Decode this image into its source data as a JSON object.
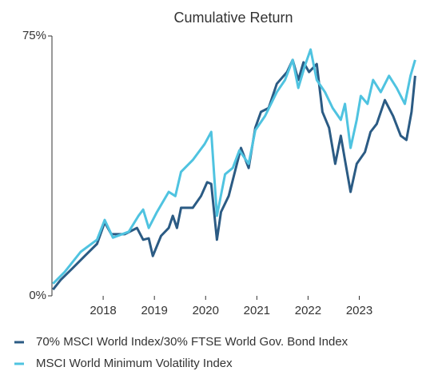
{
  "chart_data": {
    "type": "line",
    "title": "Cumulative Return",
    "xlim": [
      2017.0,
      2024.1
    ],
    "xticks": [
      2018,
      2019,
      2020,
      2021,
      2022,
      2023
    ],
    "ylim": [
      0,
      75
    ],
    "yticks": [
      {
        "value": 0,
        "label": "0%"
      },
      {
        "value": 75,
        "label": "75%"
      }
    ],
    "series": [
      {
        "name": "70% MSCI World Index/30% FTSE World Gov. Bond Index",
        "color": "#2b5b84",
        "x": [
          2017.02,
          2017.17,
          2017.41,
          2017.64,
          2017.88,
          2018.03,
          2018.16,
          2018.42,
          2018.66,
          2018.78,
          2018.89,
          2018.97,
          2019.13,
          2019.28,
          2019.36,
          2019.44,
          2019.52,
          2019.75,
          2019.91,
          2020.03,
          2020.11,
          2020.22,
          2020.3,
          2020.45,
          2020.69,
          2020.84,
          2020.97,
          2021.08,
          2021.23,
          2021.39,
          2021.59,
          2021.7,
          2021.81,
          2021.91,
          2022.02,
          2022.17,
          2022.28,
          2022.41,
          2022.53,
          2022.64,
          2022.72,
          2022.83,
          2022.95,
          2023.11,
          2023.22,
          2023.34,
          2023.5,
          2023.66,
          2023.81,
          2023.92,
          2024.02,
          2024.09
        ],
        "values": [
          1.8,
          4.6,
          8.1,
          11.5,
          15,
          21.2,
          17.8,
          17.8,
          19.6,
          16.2,
          16.6,
          11.5,
          17.3,
          19.6,
          23.1,
          19.6,
          25.4,
          25.4,
          28.8,
          32.8,
          32.3,
          16.2,
          24.2,
          28.8,
          42.7,
          36.9,
          48.5,
          53.1,
          54.2,
          61.2,
          64.6,
          68.1,
          62.3,
          67.4,
          64.6,
          66.9,
          53.1,
          48.5,
          38.1,
          46.2,
          39.2,
          30,
          38.1,
          41.5,
          47.3,
          49.6,
          56.5,
          51.9,
          46.2,
          45,
          53.1,
          63.5
        ]
      },
      {
        "name": "MSCI World Minimum Volatility Index",
        "color": "#4fc3e0",
        "x": [
          2017.02,
          2017.25,
          2017.56,
          2017.88,
          2018.03,
          2018.19,
          2018.5,
          2018.69,
          2018.78,
          2018.89,
          2019.05,
          2019.28,
          2019.41,
          2019.52,
          2019.75,
          2019.98,
          2020.11,
          2020.22,
          2020.38,
          2020.53,
          2020.66,
          2020.84,
          2020.97,
          2021.16,
          2021.39,
          2021.55,
          2021.7,
          2021.81,
          2021.94,
          2022.05,
          2022.17,
          2022.33,
          2022.48,
          2022.64,
          2022.72,
          2022.83,
          2022.95,
          2023.03,
          2023.16,
          2023.27,
          2023.42,
          2023.58,
          2023.73,
          2023.89,
          2024.0,
          2024.09
        ],
        "values": [
          3.5,
          6.9,
          12.7,
          16.2,
          21.9,
          16.8,
          18.5,
          23.1,
          24.9,
          19.6,
          24.2,
          30,
          28.8,
          35.8,
          39.2,
          43.8,
          47.3,
          23.1,
          35.1,
          36.9,
          42,
          38.1,
          47.8,
          51.9,
          58.8,
          62.3,
          68.1,
          60,
          66.5,
          71.1,
          62.3,
          58.8,
          54.2,
          50.8,
          55.4,
          42.7,
          50.8,
          57.7,
          55.4,
          62.3,
          58.8,
          63.5,
          60,
          55.4,
          63.5,
          68.1
        ]
      }
    ]
  }
}
